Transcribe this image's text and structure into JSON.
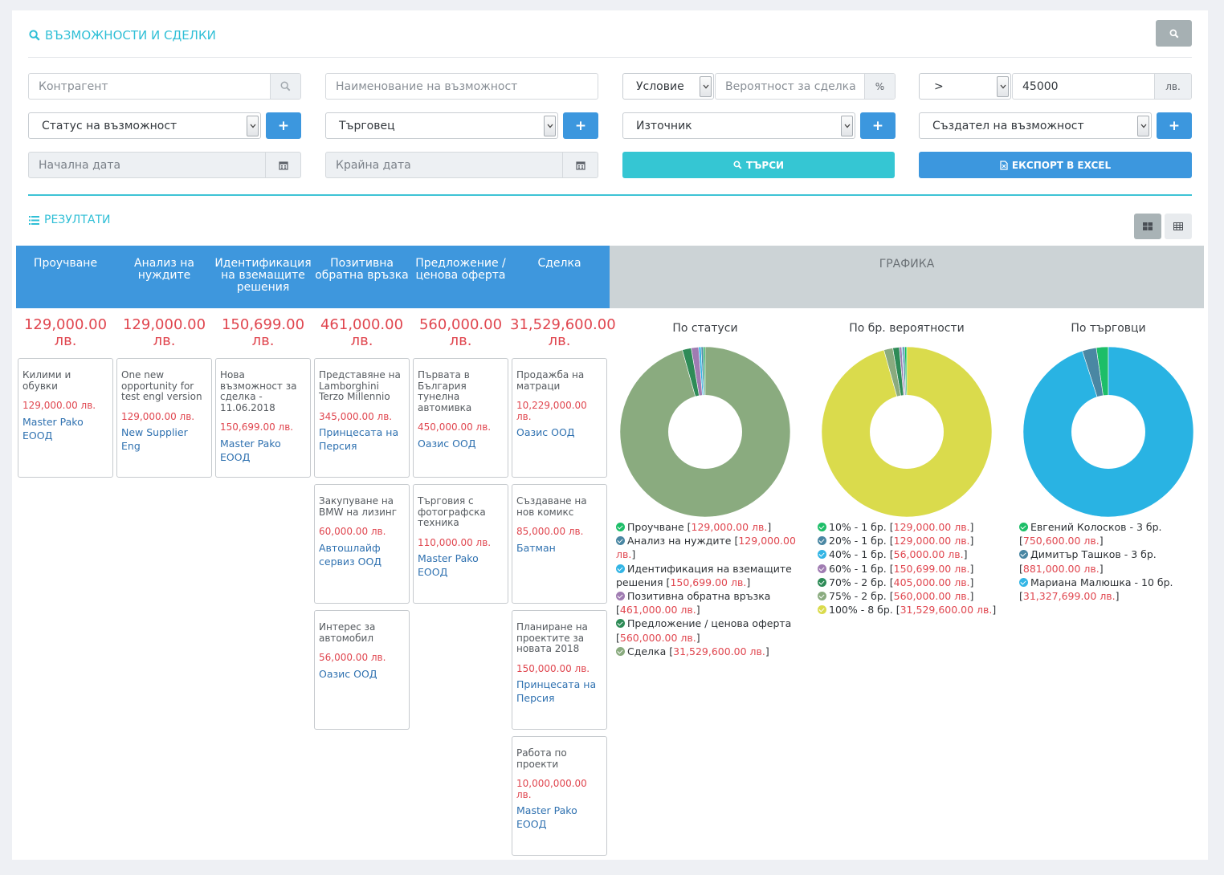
{
  "header": {
    "title": "ВЪЗМОЖНОСТИ И СДЕЛКИ"
  },
  "filters": {
    "counterparty_placeholder": "Контрагент",
    "opportunity_name_placeholder": "Наименование на възможност",
    "condition_label": "Условие",
    "probability_placeholder": "Вероятност за сделка",
    "percent_addon": "%",
    "operator_value": ">",
    "amount_value": "45000",
    "currency_addon": "лв.",
    "status_label": "Статус на възможност",
    "salesman_label": "Търговец",
    "source_label": "Източник",
    "creator_label": "Създател на възможност",
    "start_date_placeholder": "Начална дата",
    "end_date_placeholder": "Крайна дата",
    "search_button": "ТЪРСИ",
    "export_button": "ЕКСПОРТ В EXCEL"
  },
  "results": {
    "title": "РЕЗУЛТАТИ",
    "graphics_title": "ГРАФИКА"
  },
  "stages": [
    {
      "name": "Проучване",
      "total": "129,000.00 лв.",
      "cards": [
        {
          "name": "Килими и обувки",
          "amount": "129,000.00 лв.",
          "company": "Master Pako ЕООД"
        }
      ]
    },
    {
      "name": "Анализ на нуждите",
      "total": "129,000.00 лв.",
      "cards": [
        {
          "name": "One new opportunity for test engl version",
          "amount": "129,000.00 лв.",
          "company": "New Supplier Eng"
        }
      ]
    },
    {
      "name": "Идентификация на вземащите решения",
      "total": "150,699.00 лв.",
      "cards": [
        {
          "name": "Нова възможност за сделка - 11.06.2018",
          "amount": "150,699.00 лв.",
          "company": "Master Pako ЕООД"
        }
      ]
    },
    {
      "name": "Позитивна обратна връзка",
      "total": "461,000.00 лв.",
      "cards": [
        {
          "name": "Представяне на Lamborghini Terzo Millennio",
          "amount": "345,000.00 лв.",
          "company": "Принцесата на Персия"
        },
        {
          "name": "Закупуване на BMW на лизинг",
          "amount": "60,000.00 лв.",
          "company": "Автошлайф сервиз ООД"
        },
        {
          "name": "Интерес за автомобил",
          "amount": "56,000.00 лв.",
          "company": "Оазис ООД"
        }
      ]
    },
    {
      "name": "Предложение / ценова оферта",
      "total": "560,000.00 лв.",
      "cards": [
        {
          "name": "Първата в България тунелна автомивка",
          "amount": "450,000.00 лв.",
          "company": "Оазис ООД"
        },
        {
          "name": "Търговия с фотографска техника",
          "amount": "110,000.00 лв.",
          "company": "Master Pako ЕООД"
        }
      ]
    },
    {
      "name": "Сделка",
      "total": "31,529,600.00 лв.",
      "cards": [
        {
          "name": "Продажба на матраци",
          "amount": "10,229,000.00 лв.",
          "company": "Оазис ООД"
        },
        {
          "name": "Създаване на нов комикс",
          "amount": "85,000.00 лв.",
          "company": "Батман"
        },
        {
          "name": "Планиране на проектите за новата 2018",
          "amount": "150,000.00 лв.",
          "company": "Принцесата на Персия"
        },
        {
          "name": "Работа по проекти",
          "amount": "10,000,000.00 лв.",
          "company": "Master Pako ЕООД"
        }
      ]
    }
  ],
  "chart_data": [
    {
      "type": "pie",
      "title": "По статуси",
      "series": [
        {
          "label": "Проучване",
          "value": 129000.0,
          "value_text": "129,000.00 лв.",
          "color": "#27ae60"
        },
        {
          "label": "Анализ на нуждите",
          "value": 129000.0,
          "value_text": "129,000.00 лв.",
          "color": "#4a87a3"
        },
        {
          "label": "Идентификация на вземащите решения",
          "value": 150699.0,
          "value_text": "150,699.00 лв.",
          "color": "#33b5e5"
        },
        {
          "label": "Позитивна обратна връзка",
          "value": 461000.0,
          "value_text": "461,000.00 лв.",
          "color": "#a07cb2"
        },
        {
          "label": "Предложение / ценова оферта",
          "value": 560000.0,
          "value_text": "560,000.00 лв.",
          "color": "#2e8b57"
        },
        {
          "label": "Сделка",
          "value": 31529600.0,
          "value_text": "31,529,600.00 лв.",
          "color": "#8aab7f"
        }
      ]
    },
    {
      "type": "pie",
      "title": "По бр. вероятности",
      "series": [
        {
          "label": "10% - 1 бр.",
          "value": 129000.0,
          "value_text": "129,000.00 лв.",
          "color": "#0bc05c"
        },
        {
          "label": "20% - 1 бр.",
          "value": 129000.0,
          "value_text": "129,000.00 лв.",
          "color": "#4a87a3"
        },
        {
          "label": "40% - 1 бр.",
          "value": 56000.0,
          "value_text": "56,000.00 лв.",
          "color": "#24b3e6"
        },
        {
          "label": "60% - 1 бр.",
          "value": 150699.0,
          "value_text": "150,699.00 лв.",
          "color": "#a07cb2"
        },
        {
          "label": "70% - 2 бр.",
          "value": 405000.0,
          "value_text": "405,000.00 лв.",
          "color": "#2e8b57"
        },
        {
          "label": "75% - 2 бр.",
          "value": 560000.0,
          "value_text": "560,000.00 лв.",
          "color": "#8aab7f"
        },
        {
          "label": "100% - 8 бр.",
          "value": 31529600.0,
          "value_text": "31,529,600.00 лв.",
          "color": "#dadb4c"
        }
      ]
    },
    {
      "type": "pie",
      "title": "По търговци",
      "series": [
        {
          "label": "Евгений Колосков - 3 бр.",
          "value": 750600.0,
          "value_text": "750,600.00 лв.",
          "color": "#1dbe68"
        },
        {
          "label": "Димитър Ташков - 3 бр.",
          "value": 881000.0,
          "value_text": "881,000.00 лв.",
          "color": "#4a87a3"
        },
        {
          "label": "Мариана Малюшка - 10 бр.",
          "value": 31327699.0,
          "value_text": "31,327,699.00 лв.",
          "color": "#29b3e3"
        }
      ]
    }
  ]
}
